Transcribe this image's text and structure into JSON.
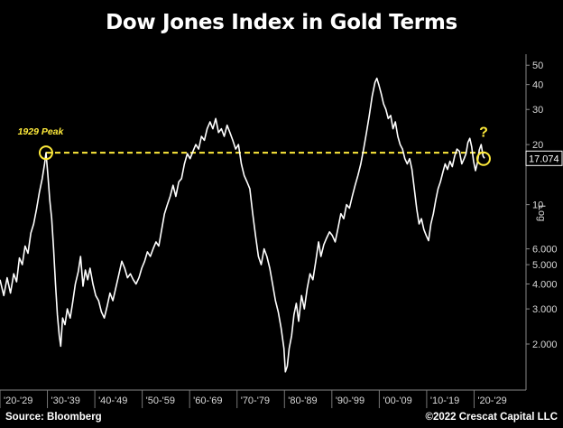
{
  "title": "Dow Jones Index in Gold Terms",
  "source": "Source: Bloomberg",
  "copyright": "©2022 Crescat Capital LLC",
  "colors": {
    "background": "#000000",
    "series": "#ffffff",
    "annotation": "#ffeb3b",
    "axis": "#888888"
  },
  "chart_data": {
    "type": "line",
    "title": "Dow Jones Index in Gold Terms",
    "y_scale": "log",
    "ylim": [
      1.2,
      58
    ],
    "xlim": [
      1920,
      2030
    ],
    "y_axis_label": "Log",
    "y_ticks": [
      {
        "value": 2,
        "label": "2.000"
      },
      {
        "value": 3,
        "label": "3.000"
      },
      {
        "value": 4,
        "label": "4.000"
      },
      {
        "value": 5,
        "label": "5.000"
      },
      {
        "value": 6,
        "label": "6.000"
      },
      {
        "value": 10,
        "label": "10"
      },
      {
        "value": 20,
        "label": "20"
      },
      {
        "value": 30,
        "label": "30"
      },
      {
        "value": 40,
        "label": "40"
      },
      {
        "value": 50,
        "label": "50"
      }
    ],
    "x_ticks": [
      "'20-'29",
      "'30-'39",
      "'40-'49",
      "'50-'59",
      "'60-'69",
      "'70-'79",
      "'80-'89",
      "'90-'99",
      "'00-'09",
      "'10-'19",
      "'20-'29"
    ],
    "last_value": {
      "value": 17.074,
      "label": "17.074"
    },
    "peak_level": 18.2,
    "annotations": [
      {
        "text": "1929 Peak",
        "x": 1929.7,
        "y": 18.2
      },
      {
        "text": "?",
        "x": 2022.0,
        "y": 17.0
      }
    ],
    "series": [
      {
        "x": [
          1920.0,
          1920.8,
          1921.5,
          1922.2,
          1922.9,
          1923.5,
          1924.1,
          1924.7,
          1925.3,
          1925.9,
          1926.5,
          1927.1,
          1927.7,
          1928.3,
          1928.9,
          1929.4,
          1929.7,
          1930.1,
          1930.5,
          1930.9,
          1931.3,
          1931.7,
          1932.1,
          1932.5,
          1932.8,
          1933.2,
          1933.7,
          1934.2,
          1934.8,
          1935.3,
          1935.9,
          1936.5,
          1937.0,
          1937.5,
          1938.0,
          1938.5,
          1939.0,
          1939.6,
          1940.2,
          1940.8,
          1941.4,
          1942.0,
          1942.6,
          1943.2,
          1943.8,
          1944.4,
          1945.0,
          1945.7,
          1946.3,
          1946.9,
          1947.5,
          1948.1,
          1948.7,
          1949.3,
          1949.9,
          1950.5,
          1951.1,
          1951.7,
          1952.3,
          1952.9,
          1953.5,
          1954.1,
          1954.7,
          1955.3,
          1955.9,
          1956.5,
          1957.1,
          1957.7,
          1958.3,
          1958.9,
          1959.5,
          1960.1,
          1960.7,
          1961.3,
          1961.9,
          1962.5,
          1963.1,
          1963.7,
          1964.3,
          1964.9,
          1965.5,
          1966.1,
          1966.7,
          1967.3,
          1967.9,
          1968.5,
          1969.1,
          1969.7,
          1970.3,
          1970.9,
          1971.5,
          1972.1,
          1972.7,
          1973.3,
          1973.9,
          1974.5,
          1975.1,
          1975.7,
          1976.3,
          1976.9,
          1977.5,
          1978.1,
          1978.7,
          1979.3,
          1979.9,
          1980.2,
          1980.6,
          1981.0,
          1981.5,
          1982.0,
          1982.5,
          1983.0,
          1983.6,
          1984.2,
          1984.8,
          1985.4,
          1986.0,
          1986.6,
          1987.2,
          1987.7,
          1988.3,
          1988.9,
          1989.5,
          1990.1,
          1990.7,
          1991.3,
          1991.9,
          1992.5,
          1993.1,
          1993.7,
          1994.3,
          1994.9,
          1995.5,
          1996.1,
          1996.7,
          1997.3,
          1997.9,
          1998.5,
          1999.1,
          1999.5,
          1999.9,
          2000.4,
          2000.9,
          2001.4,
          2001.9,
          2002.4,
          2002.9,
          2003.4,
          2003.9,
          2004.4,
          2004.9,
          2005.4,
          2005.9,
          2006.4,
          2006.9,
          2007.4,
          2007.9,
          2008.4,
          2008.9,
          2009.4,
          2009.9,
          2010.4,
          2010.9,
          2011.4,
          2011.9,
          2012.4,
          2012.9,
          2013.4,
          2013.9,
          2014.4,
          2014.9,
          2015.4,
          2015.9,
          2016.4,
          2016.9,
          2017.4,
          2017.9,
          2018.3,
          2018.7,
          2019.1,
          2019.5,
          2019.9,
          2020.3,
          2020.7,
          2021.1,
          2021.5,
          2021.9,
          2022.2
        ],
        "y": [
          4.2,
          3.5,
          4.3,
          3.6,
          4.5,
          4.1,
          5.4,
          5.0,
          6.2,
          5.7,
          7.2,
          8.0,
          9.5,
          11.5,
          13.5,
          16.0,
          18.2,
          14.0,
          10.5,
          8.5,
          6.0,
          4.0,
          2.8,
          2.2,
          1.95,
          2.7,
          2.5,
          3.0,
          2.7,
          3.2,
          4.0,
          4.6,
          5.5,
          3.9,
          4.7,
          4.2,
          4.8,
          4.0,
          3.5,
          3.3,
          2.9,
          2.7,
          3.1,
          3.6,
          3.3,
          3.8,
          4.4,
          5.2,
          4.8,
          4.3,
          4.5,
          4.2,
          4.0,
          4.3,
          4.8,
          5.2,
          5.8,
          5.5,
          6.0,
          6.5,
          6.2,
          7.5,
          9.0,
          10.0,
          11.0,
          12.5,
          11.0,
          13.0,
          13.5,
          16.0,
          18.0,
          17.0,
          18.5,
          20.0,
          19.0,
          22.0,
          21.0,
          24.0,
          26.0,
          24.0,
          27.0,
          23.0,
          24.0,
          22.0,
          25.0,
          23.0,
          21.0,
          19.0,
          20.0,
          16.0,
          14.0,
          13.0,
          12.0,
          9.0,
          7.0,
          5.5,
          5.0,
          6.0,
          5.5,
          4.8,
          4.0,
          3.3,
          2.9,
          2.4,
          1.9,
          1.45,
          1.55,
          1.9,
          2.2,
          2.8,
          3.2,
          2.6,
          3.5,
          3.0,
          3.8,
          4.5,
          4.2,
          5.2,
          6.5,
          5.5,
          6.3,
          6.8,
          7.3,
          7.0,
          6.5,
          7.6,
          9.0,
          8.5,
          10.0,
          9.6,
          11.0,
          12.5,
          14.0,
          16.0,
          19.0,
          23.0,
          28.0,
          35.0,
          41.0,
          43.0,
          40.0,
          36.0,
          32.0,
          30.0,
          27.0,
          28.0,
          24.0,
          26.0,
          22.0,
          20.0,
          19.0,
          17.0,
          16.0,
          17.0,
          15.0,
          12.0,
          9.5,
          8.0,
          8.5,
          7.5,
          7.0,
          6.6,
          8.0,
          9.0,
          10.5,
          12.0,
          13.0,
          14.5,
          16.0,
          15.0,
          16.5,
          15.5,
          17.5,
          19.0,
          18.5,
          16.0,
          17.0,
          18.0,
          20.5,
          21.5,
          19.5,
          16.5,
          14.8,
          16.2,
          18.8,
          20.0,
          17.5,
          17.074
        ]
      }
    ]
  }
}
